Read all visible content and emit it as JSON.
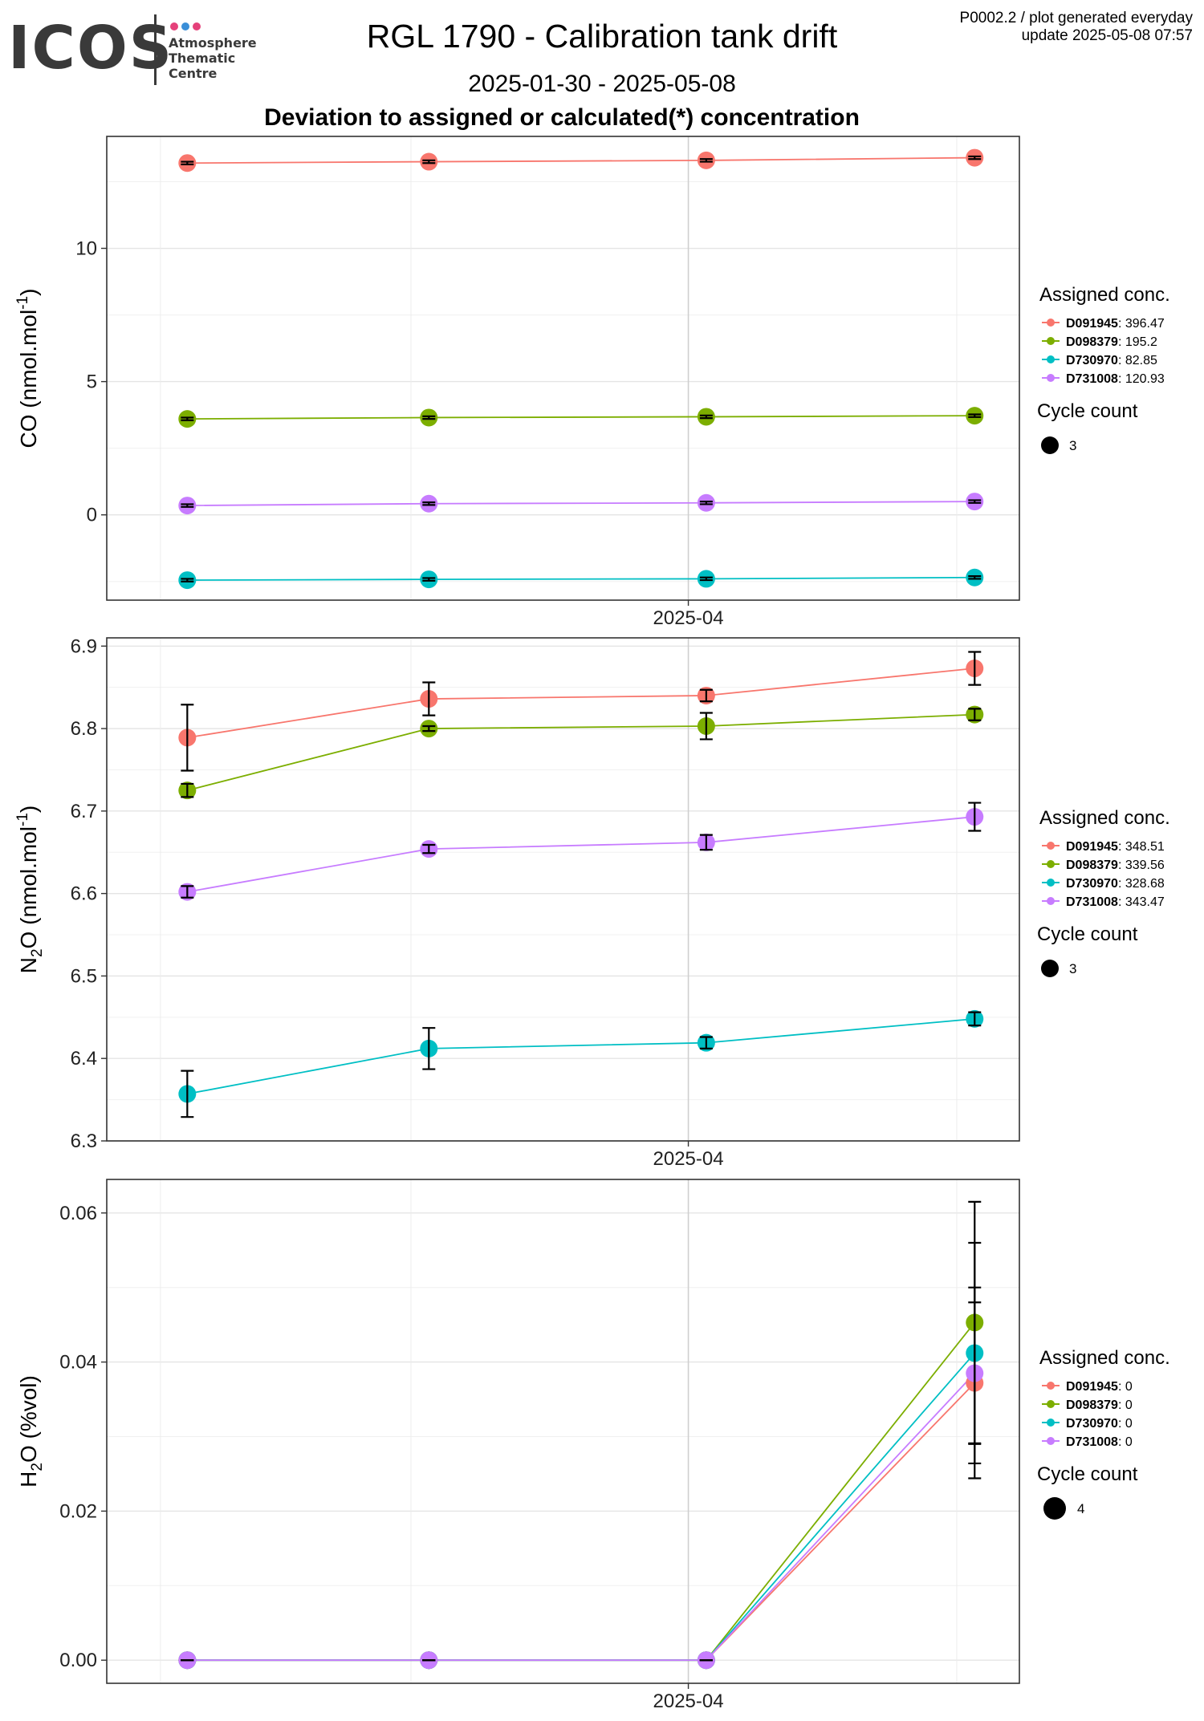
{
  "header": {
    "logo_text": "ICOS",
    "logo_sub": [
      "Atmosphere",
      "Thematic",
      "Centre"
    ],
    "logo_dot_colors": [
      "#e5417a",
      "#3a8fd8",
      "#e5417a"
    ],
    "title": "RGL 1790 - Calibration tank drift",
    "daterange": "2025-01-30 - 2025-05-08",
    "subtitle": "Deviation to assigned or calculated(*) concentration",
    "info_line1": "P0002.2 / plot generated everyday",
    "info_line2": "update  2025-05-08 07:57"
  },
  "colors": {
    "D091945": "#F8766D",
    "D098379": "#7CAE00",
    "D730970": "#00BFC4",
    "D731008": "#C77CFF"
  },
  "chart_data": [
    {
      "type": "line",
      "panel": "CO",
      "ylabel_main": "CO (nmol.mol",
      "ylabel_sup": "-1",
      "ylabel_tail": ")",
      "xtick_label": "2025-04",
      "ylim": [
        -3.2,
        14.2
      ],
      "yticks": [
        0,
        5,
        10
      ],
      "ytick_labels": [
        "0",
        "5",
        "10"
      ],
      "x": [
        "2025-02-04",
        "2025-03-03",
        "2025-04-03",
        "2025-05-03"
      ],
      "series": [
        {
          "name": "D091945",
          "values": [
            13.2,
            13.25,
            13.3,
            13.4
          ],
          "err": [
            0.05,
            0.05,
            0.05,
            0.05
          ]
        },
        {
          "name": "D098379",
          "values": [
            3.6,
            3.65,
            3.68,
            3.72
          ],
          "err": [
            0.05,
            0.05,
            0.05,
            0.05
          ]
        },
        {
          "name": "D730970",
          "values": [
            -2.45,
            -2.42,
            -2.4,
            -2.35
          ],
          "err": [
            0.05,
            0.05,
            0.05,
            0.05
          ]
        },
        {
          "name": "D731008",
          "values": [
            0.35,
            0.42,
            0.45,
            0.5
          ],
          "err": [
            0.05,
            0.05,
            0.05,
            0.05
          ]
        }
      ],
      "legend": {
        "title": "Assigned conc.",
        "items": [
          {
            "name": "D091945",
            "value": ": 396.47"
          },
          {
            "name": "D098379",
            "value": ": 195.2"
          },
          {
            "name": "D730970",
            "value": ": 82.85"
          },
          {
            "name": "D731008",
            "value": ": 120.93"
          }
        ],
        "cycle_title": "Cycle count",
        "cycle_value": "3"
      }
    },
    {
      "type": "line",
      "panel": "N2O",
      "ylabel_main": "N",
      "ylabel_sub": "2",
      "ylabel_mid": "O (nmol.mol",
      "ylabel_sup": "-1",
      "ylabel_tail": ")",
      "xtick_label": "2025-04",
      "ylim": [
        6.3,
        6.91
      ],
      "yticks": [
        6.3,
        6.4,
        6.5,
        6.6,
        6.7,
        6.8,
        6.9
      ],
      "ytick_labels": [
        "6.3",
        "6.4",
        "6.5",
        "6.6",
        "6.7",
        "6.8",
        "6.9"
      ],
      "x": [
        "2025-02-04",
        "2025-03-03",
        "2025-04-03",
        "2025-05-03"
      ],
      "series": [
        {
          "name": "D091945",
          "values": [
            6.789,
            6.836,
            6.84,
            6.873
          ],
          "err": [
            0.04,
            0.02,
            0.007,
            0.02
          ]
        },
        {
          "name": "D098379",
          "values": [
            6.725,
            6.8,
            6.803,
            6.817
          ],
          "err": [
            0.008,
            0.003,
            0.016,
            0.007
          ]
        },
        {
          "name": "D730970",
          "values": [
            6.357,
            6.412,
            6.419,
            6.448
          ],
          "err": [
            0.028,
            0.025,
            0.007,
            0.008
          ]
        },
        {
          "name": "D731008",
          "values": [
            6.602,
            6.654,
            6.662,
            6.693
          ],
          "err": [
            0.007,
            0.005,
            0.009,
            0.017
          ]
        }
      ],
      "legend": {
        "title": "Assigned conc.",
        "items": [
          {
            "name": "D091945",
            "value": ": 348.51"
          },
          {
            "name": "D098379",
            "value": ": 339.56"
          },
          {
            "name": "D730970",
            "value": ": 328.68"
          },
          {
            "name": "D731008",
            "value": ": 343.47"
          }
        ],
        "cycle_title": "Cycle count",
        "cycle_value": "3"
      }
    },
    {
      "type": "line",
      "panel": "H2O",
      "ylabel_main": "H",
      "ylabel_sub": "2",
      "ylabel_mid": "O (%vol)",
      "ylabel_sup": "",
      "ylabel_tail": "",
      "xtick_label": "2025-04",
      "ylim": [
        -0.0031,
        0.0645
      ],
      "yticks": [
        0,
        0.02,
        0.04,
        0.06
      ],
      "ytick_labels": [
        "0.00",
        "0.02",
        "0.04",
        "0.06"
      ],
      "x": [
        "2025-02-04",
        "2025-03-03",
        "2025-04-03",
        "2025-05-03"
      ],
      "series": [
        {
          "name": "D091945",
          "values": [
            0,
            0,
            0,
            0.0372
          ],
          "err": [
            0,
            0,
            0,
            0.0128
          ]
        },
        {
          "name": "D098379",
          "values": [
            0,
            0,
            0,
            0.0453
          ],
          "err": [
            0,
            0,
            0,
            0.0162
          ]
        },
        {
          "name": "D730970",
          "values": [
            0,
            0,
            0,
            0.0412
          ],
          "err": [
            0,
            0,
            0,
            0.0148
          ]
        },
        {
          "name": "D731008",
          "values": [
            0,
            0,
            0,
            0.0385
          ],
          "err": [
            0,
            0,
            0,
            0.0095
          ]
        }
      ],
      "legend": {
        "title": "Assigned conc.",
        "items": [
          {
            "name": "D091945",
            "value": ": 0"
          },
          {
            "name": "D098379",
            "value": ": 0"
          },
          {
            "name": "D730970",
            "value": ": 0"
          },
          {
            "name": "D731008",
            "value": ": 0"
          }
        ],
        "cycle_title": "Cycle count",
        "cycle_value": "4"
      }
    }
  ]
}
